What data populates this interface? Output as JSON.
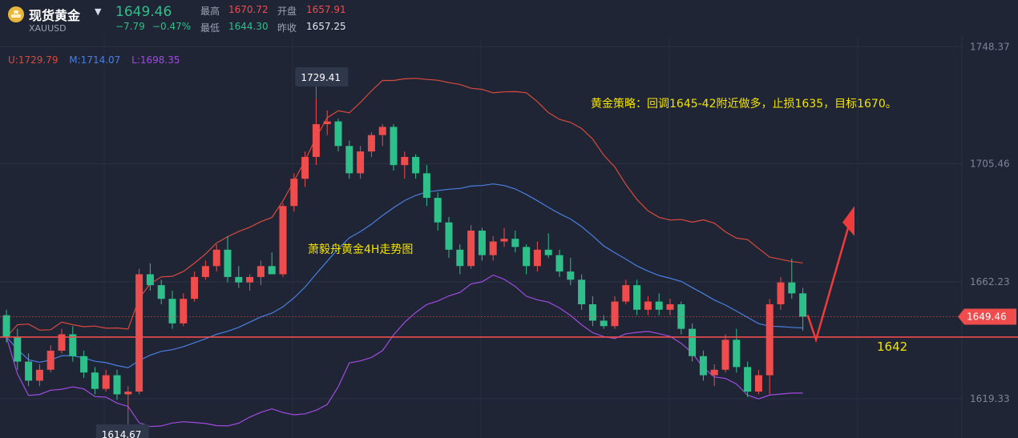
{
  "header": {
    "name": "现货黄金",
    "symbol": "XAUUSD",
    "last_price": "1649.46",
    "change": "−7.79",
    "change_pct": "−0.47%",
    "high_label": "最高",
    "high": "1670.72",
    "open_label": "开盘",
    "open": "1657.91",
    "low_label": "最低",
    "low": "1644.30",
    "prev_close_label": "昨收",
    "prev_close": "1657.25"
  },
  "bands_legend": {
    "upper": "U:1729.79",
    "middle": "M:1714.07",
    "lower": "L:1698.35"
  },
  "colors": {
    "background": "#1f2535",
    "up": "#ef4d4d",
    "down": "#2fbf8a",
    "upper_band": "#d94a3d",
    "middle_band": "#4a7fe0",
    "lower_band": "#a04be0",
    "annotation": "#f2e300",
    "price_line": "#ef4d4d"
  },
  "chart_data": {
    "type": "candlestick",
    "ylim": [
      1605,
      1752
    ],
    "y_ticks": [
      1748.37,
      1705.46,
      1662.23,
      1619.33
    ],
    "y_tick_labels": [
      "1748.37",
      "1705.46",
      "1662.23",
      "1619.33"
    ],
    "grid": true,
    "ohlc": [
      [
        1650,
        1652,
        1640,
        1642
      ],
      [
        1642,
        1645,
        1630,
        1633
      ],
      [
        1633,
        1636,
        1624,
        1626
      ],
      [
        1626,
        1632,
        1624,
        1630
      ],
      [
        1630,
        1639,
        1629,
        1637
      ],
      [
        1637,
        1645,
        1636,
        1643
      ],
      [
        1643,
        1646,
        1633,
        1635
      ],
      [
        1635,
        1637,
        1627,
        1629
      ],
      [
        1629,
        1631,
        1621,
        1623
      ],
      [
        1623,
        1630,
        1622,
        1628
      ],
      [
        1628,
        1630,
        1619,
        1621
      ],
      [
        1621,
        1624,
        1614.67,
        1622
      ],
      [
        1622,
        1667,
        1621,
        1665
      ],
      [
        1665,
        1669,
        1659,
        1661
      ],
      [
        1661,
        1663,
        1654,
        1656
      ],
      [
        1656,
        1659,
        1645,
        1647
      ],
      [
        1647,
        1658,
        1646,
        1656
      ],
      [
        1656,
        1666,
        1655,
        1664
      ],
      [
        1664,
        1670,
        1663,
        1668
      ],
      [
        1668,
        1676,
        1666,
        1674
      ],
      [
        1674,
        1679,
        1662,
        1664
      ],
      [
        1664,
        1668,
        1660,
        1662
      ],
      [
        1662,
        1665,
        1659,
        1664
      ],
      [
        1664,
        1670,
        1661,
        1668
      ],
      [
        1668,
        1673,
        1665,
        1665
      ],
      [
        1665,
        1691,
        1664,
        1690
      ],
      [
        1690,
        1702,
        1688,
        1700
      ],
      [
        1700,
        1710,
        1697,
        1708
      ],
      [
        1708,
        1729.41,
        1705,
        1720
      ],
      [
        1720,
        1725,
        1716,
        1721
      ],
      [
        1721,
        1722,
        1710,
        1712
      ],
      [
        1712,
        1714,
        1700,
        1702
      ],
      [
        1702,
        1712,
        1700,
        1710
      ],
      [
        1710,
        1717,
        1708,
        1716
      ],
      [
        1716,
        1720,
        1712,
        1719
      ],
      [
        1719,
        1720,
        1703,
        1705
      ],
      [
        1705,
        1710,
        1700,
        1708
      ],
      [
        1708,
        1709,
        1700,
        1702
      ],
      [
        1702,
        1705,
        1690,
        1693
      ],
      [
        1693,
        1695,
        1681,
        1684
      ],
      [
        1684,
        1686,
        1671,
        1674
      ],
      [
        1674,
        1676,
        1665,
        1668
      ],
      [
        1668,
        1683,
        1667,
        1681
      ],
      [
        1681,
        1682,
        1670,
        1672
      ],
      [
        1672,
        1679,
        1670,
        1677
      ],
      [
        1677,
        1682,
        1675,
        1678
      ],
      [
        1678,
        1681,
        1673,
        1675
      ],
      [
        1675,
        1676,
        1665,
        1668
      ],
      [
        1668,
        1677,
        1666,
        1674
      ],
      [
        1674,
        1680,
        1671,
        1672
      ],
      [
        1672,
        1674,
        1664,
        1666
      ],
      [
        1666,
        1671,
        1661,
        1663
      ],
      [
        1663,
        1665,
        1652,
        1654
      ],
      [
        1654,
        1657,
        1646,
        1648
      ],
      [
        1648,
        1650,
        1645,
        1646
      ],
      [
        1646,
        1657,
        1645,
        1655
      ],
      [
        1655,
        1663,
        1654,
        1661
      ],
      [
        1661,
        1663,
        1650,
        1652
      ],
      [
        1652,
        1657,
        1650,
        1655
      ],
      [
        1655,
        1658,
        1650,
        1652
      ],
      [
        1652,
        1656,
        1650,
        1654
      ],
      [
        1654,
        1655,
        1643,
        1645
      ],
      [
        1645,
        1647,
        1633,
        1635
      ],
      [
        1635,
        1637,
        1626,
        1628
      ],
      [
        1628,
        1632,
        1624,
        1630
      ],
      [
        1630,
        1643,
        1629,
        1641
      ],
      [
        1641,
        1645,
        1629,
        1631
      ],
      [
        1631,
        1633,
        1620,
        1622
      ],
      [
        1622,
        1630,
        1621,
        1628
      ],
      [
        1628,
        1656,
        1621,
        1654
      ],
      [
        1654,
        1664,
        1652,
        1662
      ],
      [
        1662,
        1670.72,
        1656,
        1658
      ],
      [
        1658,
        1660,
        1644.3,
        1649.46
      ]
    ]
  },
  "annotations": {
    "high_marker": "1729.41",
    "low_marker": "1614.67",
    "price_tag": "1649.46",
    "level_label": "1642",
    "strategy": "黄金策略：回调1645-42附近做多，止损1635，目标1670。",
    "watermark": "萧毅舟黄金4H走势图"
  }
}
